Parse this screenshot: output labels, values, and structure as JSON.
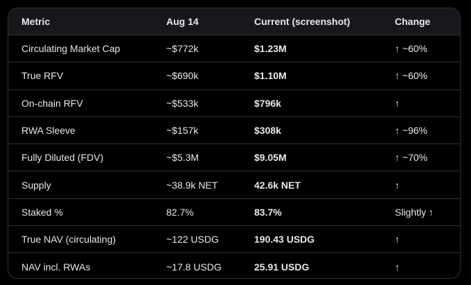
{
  "table": {
    "headers": [
      "Metric",
      "Aug 14",
      "Current (screenshot)",
      "Change"
    ],
    "rows": [
      [
        "Circulating Market Cap",
        "~$772k",
        "$1.23M",
        "↑ ~60%"
      ],
      [
        "True RFV",
        "~$690k",
        "$1.10M",
        "↑ ~60%"
      ],
      [
        "On-chain RFV",
        "~$533k",
        "$796k",
        "↑"
      ],
      [
        "RWA Sleeve",
        "~$157k",
        "$308k",
        "↑ ~96%"
      ],
      [
        "Fully Diluted (FDV)",
        "~$5.3M",
        "$9.05M",
        "↑ ~70%"
      ],
      [
        "Supply",
        "~38.9k NET",
        "42.6k NET",
        "↑"
      ],
      [
        "Staked %",
        "82.7%",
        "83.7%",
        "Slightly ↑"
      ],
      [
        "True NAV (circulating)",
        "~122 USDG",
        "190.43 USDG",
        "↑"
      ],
      [
        "NAV incl. RWAs",
        "~17.8 USDG",
        "25.91 USDG",
        "↑"
      ]
    ]
  }
}
